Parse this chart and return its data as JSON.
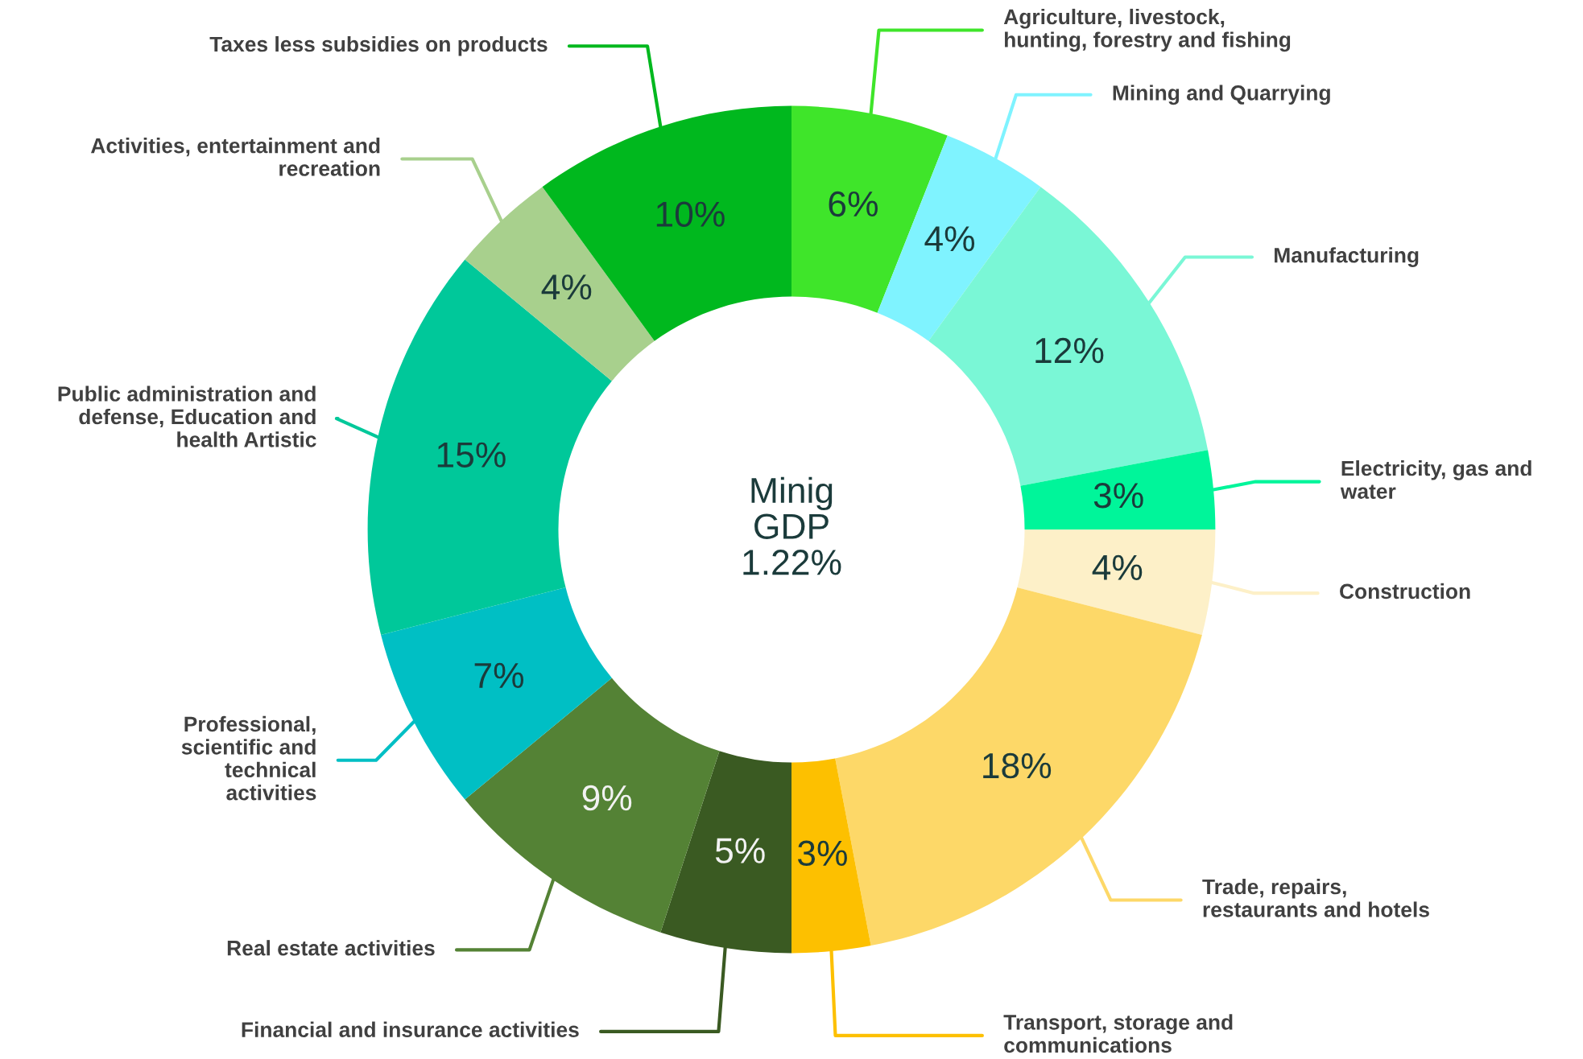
{
  "chart_data": {
    "type": "donut",
    "categories": [
      "Agriculture, livestock,\nhunting, forestry and fishing",
      "Mining and Quarrying",
      "Manufacturing",
      "Electricity, gas and\nwater",
      "Construction",
      "Trade, repairs,\nrestaurants and hotels",
      "Transport, storage and\ncommunications",
      "Financial and insurance activities",
      "Real estate activities",
      "Professional,\nscientific and\ntechnical\nactivities",
      "Public administration and\ndefense, Education and\nhealth Artistic",
      "Activities, entertainment and\nrecreation",
      "Taxes less subsidies on products"
    ],
    "values": [
      6,
      4,
      12,
      3,
      4,
      18,
      3,
      5,
      9,
      7,
      15,
      4,
      10
    ],
    "value_labels": [
      "6%",
      "4%",
      "12%",
      "3%",
      "4%",
      "18%",
      "3%",
      "5%",
      "9%",
      "7%",
      "15%",
      "4%",
      "10%"
    ],
    "colors": [
      "#3fe52a",
      "#7ff3ff",
      "#7af7d6",
      "#00f59a",
      "#fdf0c8",
      "#fdd868",
      "#fdc000",
      "#3a5a22",
      "#548235",
      "#00bfc4",
      "#00c89a",
      "#a8d08d",
      "#00b81e"
    ],
    "annotations": [
      "Minig\nGDP\n1.22%"
    ],
    "legend": false
  }
}
